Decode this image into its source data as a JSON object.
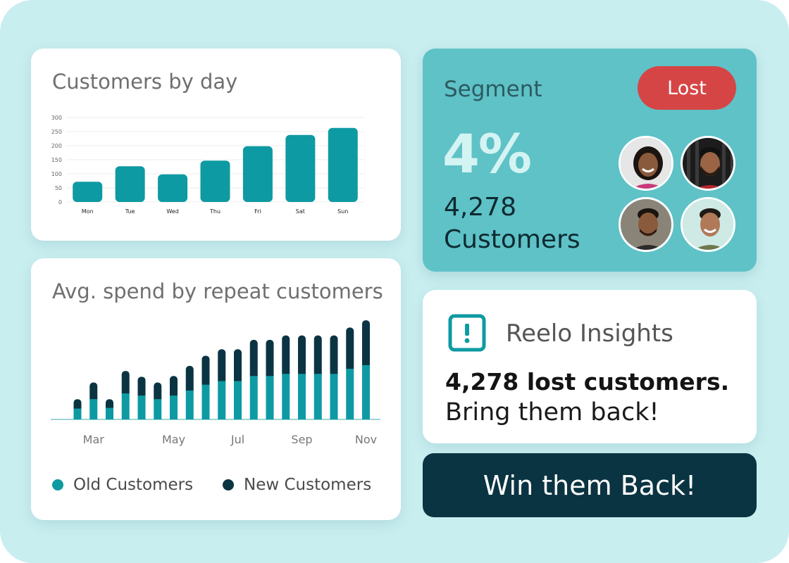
{
  "colors": {
    "teal": "#0e9aa2",
    "dark_navy": "#0b3442",
    "lost_red": "#d64545",
    "segment_bg": "#5ec2c7",
    "frame_bg": "#c9eef0"
  },
  "customers_by_day": {
    "title": "Customers by day"
  },
  "avg_spend": {
    "title": "Avg. spend by repeat customers",
    "legend": {
      "old_label": "Old Customers",
      "new_label": "New Customers"
    }
  },
  "segment": {
    "title": "Segment",
    "badge": "Lost",
    "percent": "4%",
    "count": "4,278",
    "count_label": "Customers",
    "avatars": [
      "avatar-woman",
      "avatar-man-beard",
      "avatar-man-dark-jacket",
      "avatar-man-smiling"
    ]
  },
  "insights": {
    "icon": "alert-icon",
    "title": "Reelo Insights",
    "headline": "4,278 lost customers.",
    "subline": "Bring them back!"
  },
  "cta": {
    "label": "Win them Back!"
  },
  "chart_data": [
    {
      "type": "bar",
      "title": "Customers by day",
      "categories": [
        "Mon",
        "Tue",
        "Wed",
        "Thu",
        "Fri",
        "Sat",
        "Sun"
      ],
      "values": [
        72,
        127,
        98,
        147,
        198,
        238,
        263
      ],
      "yticks": [
        0,
        50,
        100,
        150,
        200,
        250,
        300
      ],
      "ylim": [
        0,
        300
      ],
      "xlabel": "",
      "ylabel": "",
      "grid": true
    },
    {
      "type": "bar",
      "stacked": true,
      "title": "Avg. spend by repeat customers",
      "x_tick_labels": [
        "Mar",
        "May",
        "Jul",
        "Sep",
        "Nov"
      ],
      "x_tick_index": [
        1,
        6,
        10,
        14,
        18
      ],
      "series": [
        {
          "name": "Old Customers",
          "color": "#0e9aa2",
          "values": [
            15,
            28,
            16,
            36,
            33,
            28,
            33,
            40,
            48,
            53,
            53,
            60,
            60,
            63,
            63,
            63,
            63,
            70,
            75
          ]
        },
        {
          "name": "New Customers",
          "color": "#0b3442",
          "values": [
            13,
            23,
            12,
            31,
            26,
            23,
            27,
            34,
            40,
            44,
            44,
            50,
            50,
            53,
            53,
            53,
            53,
            57,
            62
          ]
        }
      ],
      "ylim": [
        0,
        140
      ],
      "xlabel": "",
      "ylabel": "",
      "grid": false,
      "legend": "bottom"
    }
  ]
}
